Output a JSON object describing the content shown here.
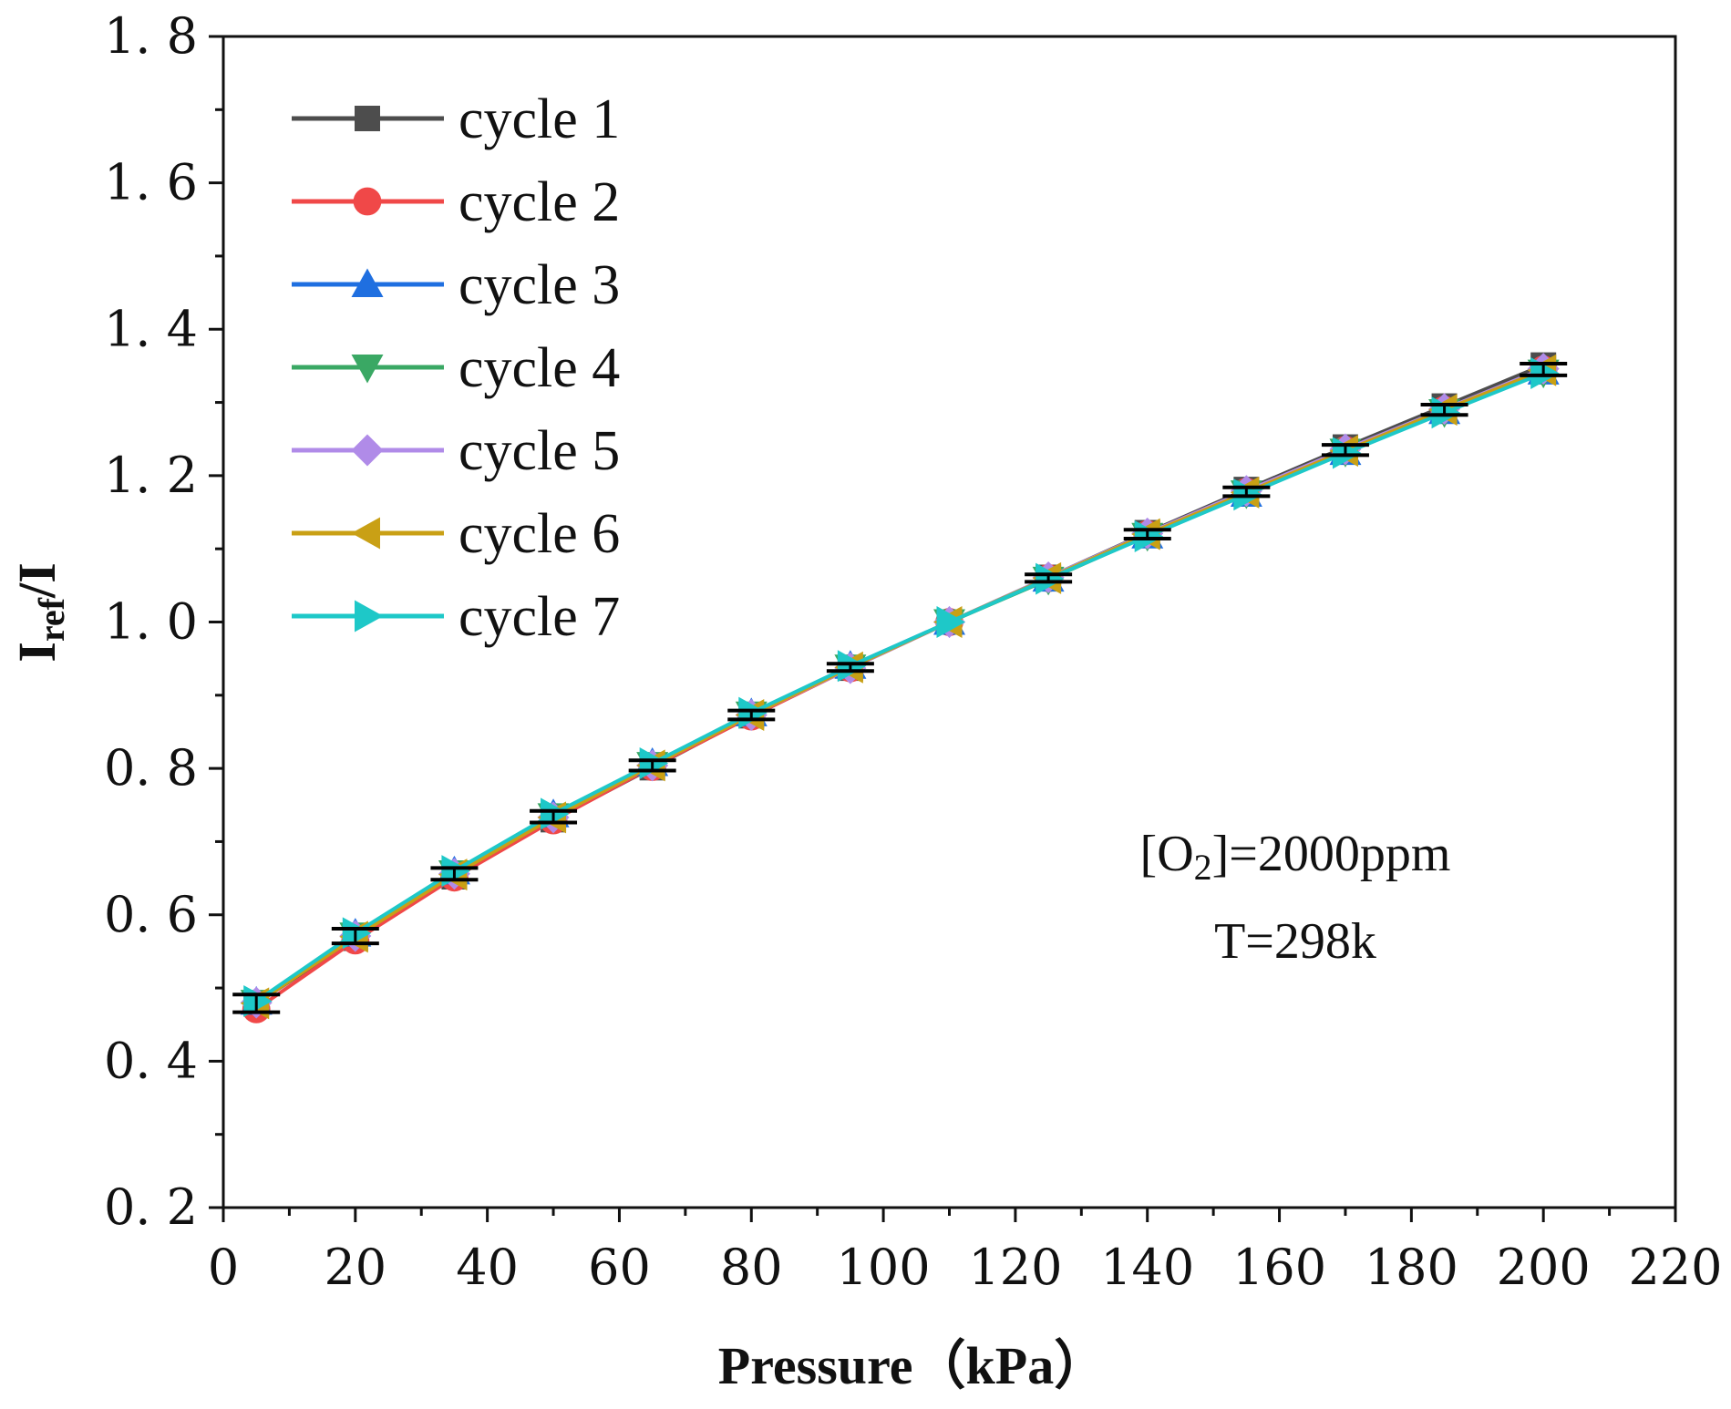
{
  "chart_data": {
    "type": "line",
    "xlabel": "Pressure（kPa）",
    "ylabel_main": "I",
    "ylabel_sub": "ref",
    "ylabel_tail": "/I",
    "xlim": [
      0,
      220
    ],
    "ylim": [
      0.2,
      1.8
    ],
    "xticks": [
      0,
      20,
      40,
      60,
      80,
      100,
      120,
      140,
      160,
      180,
      200,
      220
    ],
    "yticks": [
      0.2,
      0.4,
      0.6,
      0.8,
      1.0,
      1.2,
      1.4,
      1.6,
      1.8
    ],
    "ytick_labels": [
      "0. 2",
      "0. 4",
      "0. 6",
      "0. 8",
      "1. 0",
      "1. 2",
      "1. 4",
      "1. 6",
      "1. 8"
    ],
    "grid": false,
    "legend_position": "top-left",
    "x": [
      5,
      20,
      35,
      50,
      65,
      80,
      95,
      110,
      125,
      140,
      155,
      170,
      185,
      200
    ],
    "mean": [
      0.479,
      0.571,
      0.656,
      0.734,
      0.804,
      0.873,
      0.938,
      1.0,
      1.06,
      1.12,
      1.178,
      1.235,
      1.29,
      1.345
    ],
    "error": [
      0.012,
      0.01,
      0.008,
      0.008,
      0.007,
      0.006,
      0.005,
      0.0,
      0.005,
      0.006,
      0.006,
      0.007,
      0.007,
      0.008
    ],
    "series": [
      {
        "name": "cycle 1",
        "color": "#4d4d4d",
        "marker": "square",
        "values": [
          0.479,
          0.568,
          0.652,
          0.73,
          0.801,
          0.872,
          0.937,
          1.0,
          1.061,
          1.122,
          1.181,
          1.239,
          1.295,
          1.351
        ]
      },
      {
        "name": "cycle 2",
        "color": "#f04848",
        "marker": "circle",
        "values": [
          0.471,
          0.565,
          0.651,
          0.729,
          0.802,
          0.871,
          0.937,
          1.0,
          1.06,
          1.12,
          1.178,
          1.235,
          1.29,
          1.345
        ]
      },
      {
        "name": "cycle 3",
        "color": "#1f6fe0",
        "marker": "triangle-up",
        "values": [
          0.481,
          0.574,
          0.659,
          0.737,
          0.807,
          0.875,
          0.94,
          1.0,
          1.059,
          1.118,
          1.175,
          1.232,
          1.288,
          1.342
        ]
      },
      {
        "name": "cycle 4",
        "color": "#3aa864",
        "marker": "triangle-down",
        "values": [
          0.48,
          0.572,
          0.657,
          0.735,
          0.805,
          0.874,
          0.938,
          1.0,
          1.058,
          1.118,
          1.176,
          1.233,
          1.287,
          1.341
        ]
      },
      {
        "name": "cycle 5",
        "color": "#b08be8",
        "marker": "diamond",
        "values": [
          0.48,
          0.571,
          0.656,
          0.733,
          0.804,
          0.873,
          0.937,
          1.0,
          1.061,
          1.121,
          1.179,
          1.236,
          1.291,
          1.346
        ]
      },
      {
        "name": "cycle 6",
        "color": "#c9a015",
        "marker": "triangle-left",
        "values": [
          0.479,
          0.57,
          0.655,
          0.733,
          0.804,
          0.873,
          0.938,
          1.0,
          1.06,
          1.12,
          1.177,
          1.234,
          1.29,
          1.344
        ]
      },
      {
        "name": "cycle 7",
        "color": "#1ec8c8",
        "marker": "triangle-right",
        "values": [
          0.482,
          0.575,
          0.66,
          0.738,
          0.807,
          0.876,
          0.94,
          1.0,
          1.059,
          1.117,
          1.174,
          1.231,
          1.286,
          1.34
        ]
      }
    ],
    "annotation": {
      "line1_a": "[O",
      "line1_sub": "2",
      "line1_b": "]=2000ppm",
      "line2": "T=298k"
    }
  }
}
